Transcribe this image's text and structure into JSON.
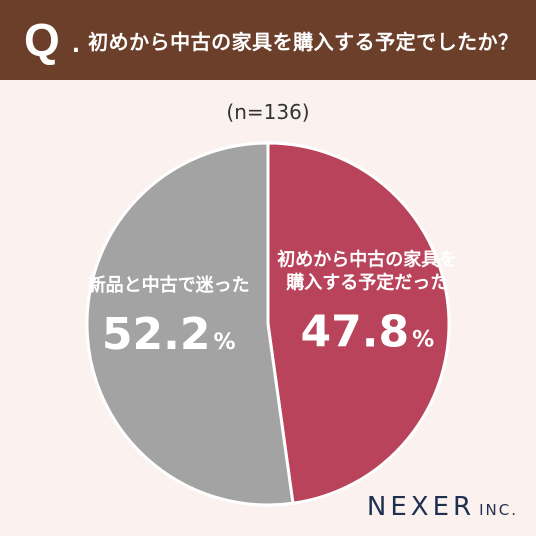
{
  "header": {
    "q_mark": "Q",
    "q_dot": ".",
    "question": "初めから中古の家具を購入する予定でしたか？"
  },
  "sample_size": "(n=136)",
  "logo": {
    "name": "NEXER",
    "suffix": "INC."
  },
  "colors": {
    "header_bg": "#6b3f2a",
    "background": "#fbf1ee",
    "slice_planned": "#b9435a",
    "slice_undecided": "#a3a3a3",
    "logo": "#1f2f4f"
  },
  "chart_data": {
    "type": "pie",
    "title": "初めから中古の家具を購入する予定でしたか？",
    "slices": [
      {
        "label_lines": [
          "初めから中古の家具を",
          "購入する予定だった"
        ],
        "value": 47.8,
        "value_text": "47.8",
        "unit": "%",
        "color": "#b9435a"
      },
      {
        "label_lines": [
          "新品と中古で迷った"
        ],
        "value": 52.2,
        "value_text": "52.2",
        "unit": "%",
        "color": "#a3a3a3"
      }
    ]
  }
}
